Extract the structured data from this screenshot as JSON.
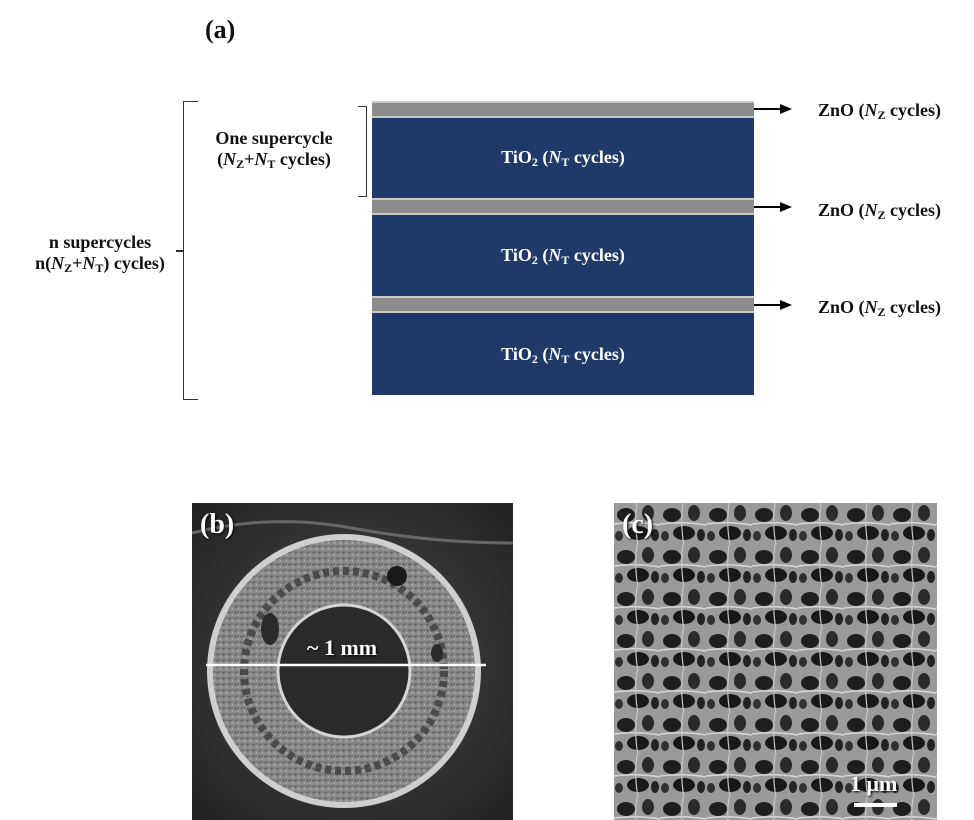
{
  "panel_a": {
    "label": "(a)",
    "tio2_label": "TiO",
    "tio2_sub": "2",
    "tio2_cycles_N": "N",
    "tio2_cycles_sub": "T",
    "tio2_cycles_word": "cycles)",
    "zno_label": "ZnO (",
    "zno_N": "N",
    "zno_sub": "Z",
    "zno_word": "cycles)",
    "one_supercycle_line1": "One supercycle",
    "one_supercycle_line2_open": "(",
    "one_supercycle_line2_word": "cycles)",
    "n_supercycles_line1": "n supercycles",
    "n_supercycles_line2_open": "n(",
    "n_supercycles_line2_word": "cycles)",
    "N": "N",
    "Z": "Z",
    "T": "T",
    "plus": "+",
    "close_paren": ")",
    "layers": 3
  },
  "panel_b": {
    "label": "(b)",
    "scale_text": "~ 1 mm"
  },
  "panel_c": {
    "label": "(c)",
    "scale_text": "1 μm"
  },
  "colors": {
    "tio2": "#1f3a68",
    "zno": "#8c8c8c"
  }
}
